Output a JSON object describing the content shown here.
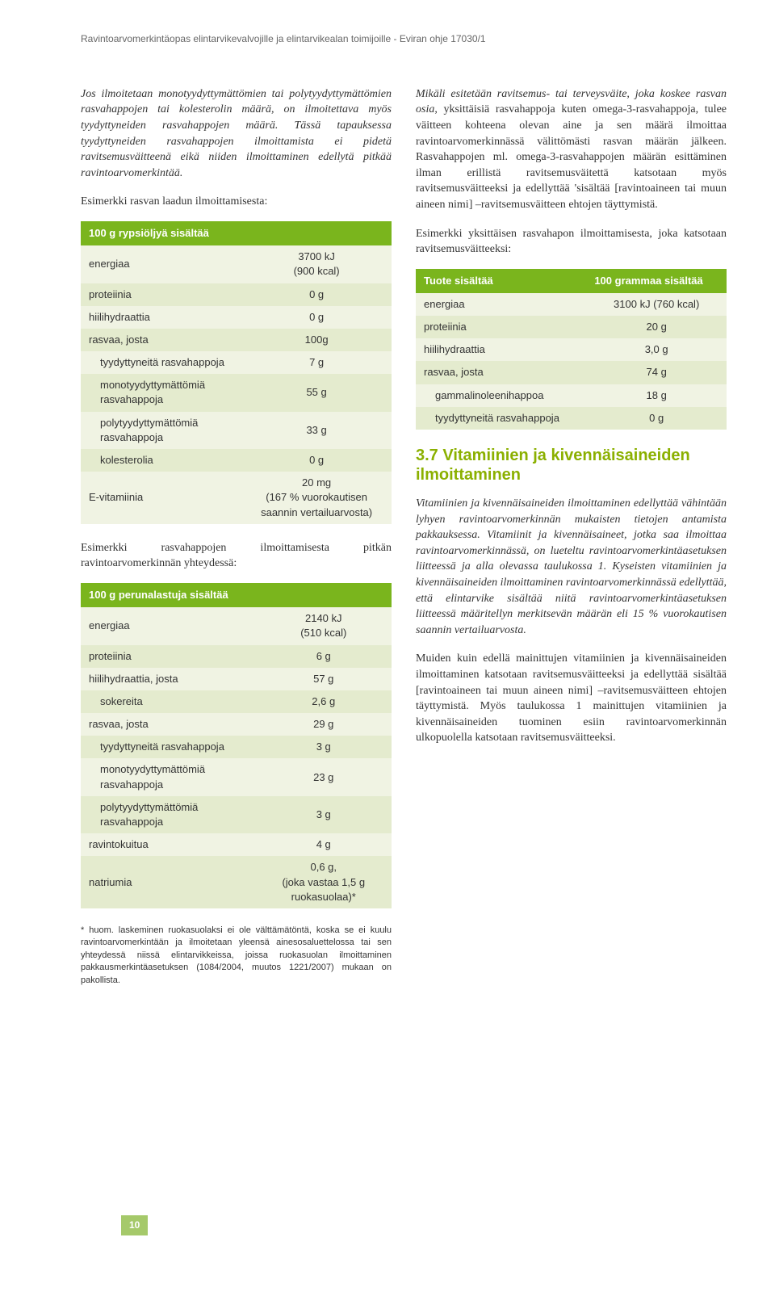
{
  "header": "Ravintoarvomerkintäopas elintarvikevalvojille ja elintarvikealan toimijoille - Eviran ohje 17030/1",
  "page_number": "10",
  "left": {
    "para1": "Jos ilmoitetaan monotyydyttymättömien tai polytyydyttymättömien rasvahappojen tai kolesterolin määrä, on ilmoitettava myös tyydyttyneiden rasvahappojen määrä. Tässä tapauksessa tyydyttyneiden rasvahappojen ilmoittamista ei pidetä ravitsemusväitteenä eikä niiden ilmoittaminen edellytä pitkää ravintoarvomerkintää.",
    "intro1": "Esimerkki rasvan laadun ilmoittamisesta:",
    "table1": {
      "header": "100 g rypsiöljyä sisältää",
      "rows": [
        {
          "cls": "light",
          "label": "energiaa",
          "val": "3700 kJ\n(900 kcal)"
        },
        {
          "cls": "dark",
          "label": "proteiinia",
          "val": "0 g"
        },
        {
          "cls": "light",
          "label": "hiilihydraattia",
          "val": "0 g"
        },
        {
          "cls": "dark",
          "label": "rasvaa, josta",
          "val": "100g"
        },
        {
          "cls": "light",
          "indent": true,
          "label": "tyydyttyneitä rasvahappoja",
          "val": "7 g"
        },
        {
          "cls": "dark",
          "indent": true,
          "label": "monotyydyttymättömiä rasvahappoja",
          "val": "55 g"
        },
        {
          "cls": "light",
          "indent": true,
          "label": "polytyydyttymättömiä rasvahappoja",
          "val": "33 g"
        },
        {
          "cls": "dark",
          "indent": true,
          "label": "kolesterolia",
          "val": "0 g"
        },
        {
          "cls": "light",
          "label": "E-vitamiinia",
          "val": "20 mg\n(167 % vuorokautisen saannin vertailuarvosta)"
        }
      ]
    },
    "intro2": "Esimerkki rasvahappojen ilmoittamisesta pitkän ravintoarvomerkinnän yhteydessä:",
    "table2": {
      "header": "100 g perunalastuja sisältää",
      "rows": [
        {
          "cls": "light",
          "label": "energiaa",
          "val": "2140 kJ\n(510 kcal)"
        },
        {
          "cls": "dark",
          "label": "proteiinia",
          "val": "6 g"
        },
        {
          "cls": "light",
          "label": "hiilihydraattia, josta",
          "val": "57 g"
        },
        {
          "cls": "dark",
          "indent": true,
          "label": "sokereita",
          "val": "2,6 g"
        },
        {
          "cls": "light",
          "label": "rasvaa, josta",
          "val": "29 g"
        },
        {
          "cls": "dark",
          "indent": true,
          "label": "tyydyttyneitä rasvahappoja",
          "val": "3 g"
        },
        {
          "cls": "light",
          "indent": true,
          "label": "monotyydyttymättömiä rasvahappoja",
          "val": "23 g"
        },
        {
          "cls": "dark",
          "indent": true,
          "label": "polytyydyttymättömiä rasvahappoja",
          "val": "3 g"
        },
        {
          "cls": "light",
          "label": "ravintokuitua",
          "val": "4 g"
        },
        {
          "cls": "dark",
          "label": "natriumia",
          "val": "0,6 g,\n(joka vastaa 1,5 g ruokasuolaa)*"
        }
      ]
    },
    "footnote": "* huom. laskeminen ruokasuolaksi ei ole välttämätöntä, koska se ei kuulu ravintoarvomerkintään ja ilmoitetaan yleensä ainesosaluettelossa tai sen yhteydessä niissä elintarvikkeissa, joissa ruokasuolan ilmoittaminen pakkausmerkintäasetuksen (1084/2004, muutos 1221/2007) mukaan on pakollista."
  },
  "right": {
    "para1_prefix": "Mikäli esitetään ravitsemus- tai terveysväite, joka koskee rasvan osia",
    "para1_rest": ", yksittäisiä rasvahappoja kuten omega-3-rasvahappoja, tulee väitteen kohteena olevan aine ja sen määrä ilmoittaa ravintoarvomerkinnässä välittömästi rasvan määrän jälkeen. Rasvahappojen ml. omega-3-rasvahappojen määrän esittäminen ilman erillistä ravitsemusväitettä katsotaan myös ravitsemusväitteeksi ja edellyttää 'sisältää [ravintoaineen tai muun aineen nimi] –ravitsemusväitteen ehtojen täyttymistä.",
    "intro3": "Esimerkki yksittäisen rasvahapon ilmoittamisesta, joka katsotaan ravitsemusväitteeksi:",
    "table3": {
      "header1": "Tuote sisältää",
      "header2": "100 grammaa sisältää",
      "rows": [
        {
          "cls": "light",
          "label": "energiaa",
          "val": "3100 kJ (760 kcal)"
        },
        {
          "cls": "dark",
          "label": "proteiinia",
          "val": "20 g"
        },
        {
          "cls": "light",
          "label": "hiilihydraattia",
          "val": "3,0 g"
        },
        {
          "cls": "dark",
          "label": "rasvaa, josta",
          "val": "74 g"
        },
        {
          "cls": "light",
          "indent": true,
          "label": "gammalinoleenihappoa",
          "val": "18 g"
        },
        {
          "cls": "dark",
          "indent": true,
          "label": "tyydyttyneitä rasvahappoja",
          "val": "0 g"
        }
      ]
    },
    "heading": "3.7 Vitamiinien ja kivennäisaineiden ilmoittaminen",
    "para2": "Vitamiinien ja kivennäisaineiden ilmoittaminen edellyttää vähintään lyhyen ravintoarvomerkinnän mukaisten tietojen antamista pakkauksessa. Vitamiinit ja kivennäisaineet, jotka saa ilmoittaa ravintoarvomerkinnässä, on lueteltu ravintoarvomerkintäasetuksen liitteessä ja alla olevassa taulukossa 1. Kyseisten vitamiinien ja kivennäisaineiden ilmoittaminen ravintoarvomerkinnässä edellyttää, että elintarvike sisältää niitä ravintoarvomerkintäasetuksen liitteessä määritellyn merkitsevän määrän eli 15 % vuorokautisen saannin vertailuarvosta.",
    "para3": "Muiden kuin edellä mainittujen vitamiinien ja kivennäisaineiden ilmoittaminen katsotaan ravitsemusväitteeksi ja edellyttää sisältää [ravintoaineen tai muun aineen nimi] –ravitsemusväitteen ehtojen täyttymistä. Myös taulukossa 1 mainittujen vitamiinien ja kivennäisaineiden tuominen esiin ravintoarvomerkinnän ulkopuolella katsotaan ravitsemusväitteeksi."
  },
  "colors": {
    "header_green": "#7ab51d",
    "section_green": "#8bb000",
    "row_light": "#f0f3e3",
    "row_dark": "#e4ebce",
    "page_badge": "#a5c96a"
  }
}
